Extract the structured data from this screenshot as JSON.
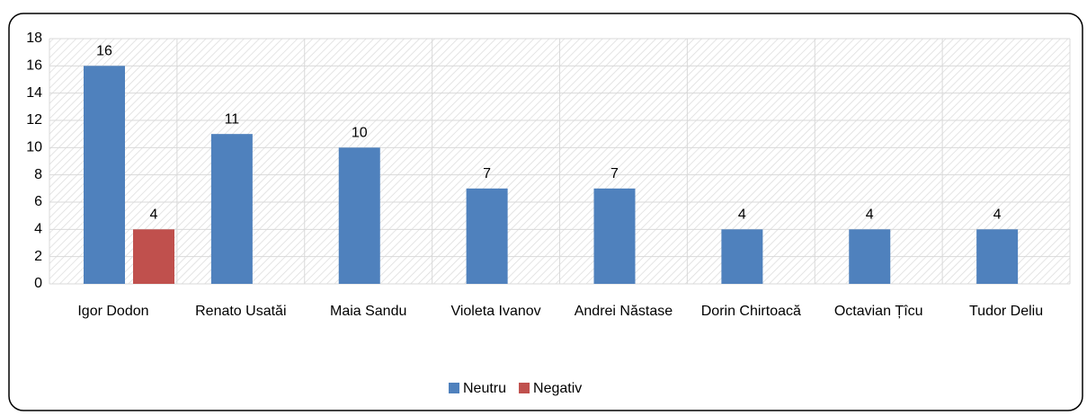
{
  "chart_data": {
    "type": "bar",
    "categories": [
      "Igor Dodon",
      "Renato Usatăi",
      "Maia Sandu",
      "Violeta Ivanov",
      "Andrei Năstase",
      "Dorin Chirtoacă",
      "Octavian Țîcu",
      "Tudor Deliu"
    ],
    "series": [
      {
        "name": "Neutru",
        "color": "#4f81bd",
        "values": [
          16,
          11,
          10,
          7,
          7,
          4,
          4,
          4
        ]
      },
      {
        "name": "Negativ",
        "color": "#c0504d",
        "values": [
          4,
          null,
          null,
          null,
          null,
          null,
          null,
          null
        ]
      }
    ],
    "ylim": [
      0,
      18
    ],
    "yticks": [
      0,
      2,
      4,
      6,
      8,
      10,
      12,
      14,
      16,
      18
    ],
    "grid": true,
    "legend": "bottom"
  }
}
